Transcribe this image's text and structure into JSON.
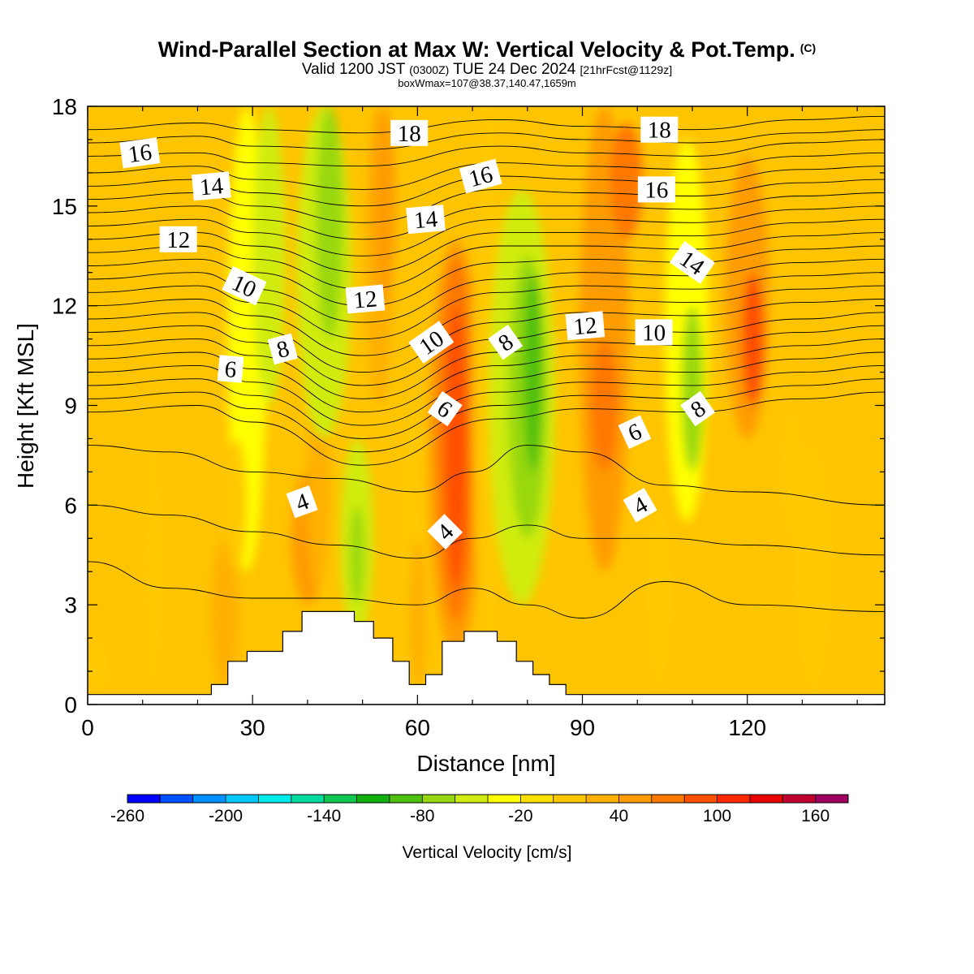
{
  "chart_data": {
    "type": "heatmap",
    "title": "Wind-Parallel Section at Max W: Vertical Velocity & Pot.Temp.",
    "title_mark": "(C)",
    "subtitle": {
      "prefix": "Valid 1200 JST",
      "utc": "(0300Z)",
      "date": "TUE 24 Dec 2024",
      "run": "[21hrFcst@1129z]"
    },
    "subsubtitle": "boxWmax=107@38.37,140.47,1659m",
    "xlabel": "Distance [nm]",
    "ylabel": "Height [Kft MSL]",
    "xlim": [
      0,
      145
    ],
    "ylim": [
      0,
      18
    ],
    "x_ticks": [
      0,
      30,
      60,
      90,
      120
    ],
    "y_ticks": [
      0,
      3,
      6,
      9,
      12,
      15,
      18
    ],
    "colorbar": {
      "label": "Vertical Velocity [cm/s]",
      "min": -260,
      "max": 180,
      "step": 20,
      "tick_labels": [
        -260,
        -200,
        -140,
        -80,
        -20,
        40,
        100,
        160
      ],
      "colors": [
        "#0000ff",
        "#0050ff",
        "#0090ff",
        "#00c8ff",
        "#00eaea",
        "#00dca0",
        "#10c850",
        "#10b010",
        "#50c010",
        "#98d810",
        "#d0ec10",
        "#ffff00",
        "#ffe000",
        "#ffc800",
        "#ffb000",
        "#ff9c00",
        "#ff7800",
        "#ff5000",
        "#ff2800",
        "#e80000",
        "#c00030",
        "#a00060"
      ]
    },
    "vertical_velocity_bands": [
      {
        "x": 12,
        "w": 4,
        "y0": 0.3,
        "y1": 8,
        "value": 10
      },
      {
        "x": 25,
        "w": 5,
        "y0": 0.5,
        "y1": 5,
        "value": 30
      },
      {
        "x": 29,
        "w": 7,
        "y0": 4,
        "y1": 18,
        "value": -30
      },
      {
        "x": 33,
        "w": 6,
        "y0": 9,
        "y1": 18,
        "value": -45
      },
      {
        "x": 40,
        "w": 6,
        "y0": 3,
        "y1": 7,
        "value": 50
      },
      {
        "x": 42,
        "w": 4,
        "y0": 3.5,
        "y1": 10,
        "value": 20
      },
      {
        "x": 43,
        "w": 10,
        "y0": 8,
        "y1": 18,
        "value": -50
      },
      {
        "x": 44,
        "w": 5,
        "y0": 11,
        "y1": 18,
        "value": -80
      },
      {
        "x": 49,
        "w": 6,
        "y0": 2,
        "y1": 8,
        "value": -45
      },
      {
        "x": 49,
        "w": 2.5,
        "y0": 3,
        "y1": 6,
        "value": -75
      },
      {
        "x": 53,
        "w": 5,
        "y0": 9,
        "y1": 18,
        "value": 20
      },
      {
        "x": 54,
        "w": 4,
        "y0": 12,
        "y1": 18,
        "value": 45
      },
      {
        "x": 59,
        "w": 5,
        "y0": 0.5,
        "y1": 9,
        "value": 10
      },
      {
        "x": 60,
        "w": 3,
        "y0": 0.5,
        "y1": 5,
        "value": 30
      },
      {
        "x": 67,
        "w": 10,
        "y0": 1.5,
        "y1": 14,
        "value": 40
      },
      {
        "x": 67,
        "w": 7,
        "y0": 2.5,
        "y1": 13.5,
        "value": 70
      },
      {
        "x": 67,
        "w": 4,
        "y0": 3.5,
        "y1": 12,
        "value": 95
      },
      {
        "x": 73,
        "w": 6,
        "y0": 1.5,
        "y1": 18,
        "value": 10
      },
      {
        "x": 79,
        "w": 12,
        "y0": 3,
        "y1": 15.5,
        "value": -45
      },
      {
        "x": 80,
        "w": 7,
        "y0": 5,
        "y1": 13.5,
        "value": -75
      },
      {
        "x": 81,
        "w": 3.5,
        "y0": 7,
        "y1": 13,
        "value": -95
      },
      {
        "x": 94,
        "w": 9,
        "y0": 4,
        "y1": 18,
        "value": 40
      },
      {
        "x": 94,
        "w": 5,
        "y0": 7,
        "y1": 11,
        "value": 70
      },
      {
        "x": 98,
        "w": 6,
        "y0": 14,
        "y1": 17.5,
        "value": 65
      },
      {
        "x": 109,
        "w": 8,
        "y0": 5.5,
        "y1": 17,
        "value": -35
      },
      {
        "x": 110,
        "w": 4,
        "y0": 7,
        "y1": 12,
        "value": -65
      },
      {
        "x": 104,
        "w": 6,
        "y0": 0.5,
        "y1": 6,
        "value": 10
      },
      {
        "x": 120,
        "w": 8,
        "y0": 8,
        "y1": 16.5,
        "value": 55
      },
      {
        "x": 121,
        "w": 4,
        "y0": 9,
        "y1": 13,
        "value": 80
      },
      {
        "x": 128,
        "w": 5,
        "y0": 5,
        "y1": 9,
        "value": 10
      },
      {
        "x": 132,
        "w": 8,
        "y0": 0.3,
        "y1": 8,
        "value": 10
      },
      {
        "x": 2,
        "w": 5,
        "y0": 0.3,
        "y1": 2,
        "value": 10
      },
      {
        "x": 27,
        "w": 4,
        "y0": 4,
        "y1": 8,
        "value": 10
      }
    ],
    "terrain_steps": [
      [
        0,
        0.3
      ],
      [
        22.5,
        0.3
      ],
      [
        22.5,
        0.6
      ],
      [
        25.5,
        0.6
      ],
      [
        25.5,
        1.3
      ],
      [
        29,
        1.3
      ],
      [
        29,
        1.6
      ],
      [
        35.5,
        1.6
      ],
      [
        35.5,
        2.2
      ],
      [
        39,
        2.2
      ],
      [
        39,
        2.8
      ],
      [
        48.5,
        2.8
      ],
      [
        48.5,
        2.5
      ],
      [
        52,
        2.5
      ],
      [
        52,
        2.0
      ],
      [
        55.5,
        2.0
      ],
      [
        55.5,
        1.3
      ],
      [
        58.5,
        1.3
      ],
      [
        58.5,
        0.6
      ],
      [
        61.5,
        0.6
      ],
      [
        61.5,
        0.9
      ],
      [
        64.5,
        0.9
      ],
      [
        64.5,
        1.9
      ],
      [
        68.5,
        1.9
      ],
      [
        68.5,
        2.2
      ],
      [
        74.5,
        2.2
      ],
      [
        74.5,
        1.9
      ],
      [
        78,
        1.9
      ],
      [
        78,
        1.3
      ],
      [
        81,
        1.3
      ],
      [
        81,
        0.9
      ],
      [
        84,
        0.9
      ],
      [
        84,
        0.6
      ],
      [
        87,
        0.6
      ],
      [
        87,
        0.3
      ],
      [
        145,
        0.3
      ]
    ],
    "theta_lines": [
      {
        "xs": [
          0,
          20,
          30,
          50,
          75,
          90,
          110,
          130,
          145
        ],
        "ys": [
          17.3,
          17.5,
          17.3,
          17.2,
          17.6,
          17.4,
          17.3,
          17.6,
          17.7
        ]
      },
      {
        "xs": [
          0,
          20,
          30,
          50,
          75,
          90,
          110,
          130,
          145
        ],
        "ys": [
          16.9,
          17.1,
          16.8,
          16.7,
          17.2,
          17.0,
          16.9,
          17.2,
          17.3
        ]
      },
      {
        "xs": [
          0,
          20,
          30,
          50,
          75,
          90,
          110,
          130,
          145
        ],
        "ys": [
          16.5,
          16.6,
          16.3,
          16.2,
          16.8,
          16.6,
          16.5,
          16.9,
          17.0
        ]
      },
      {
        "xs": [
          0,
          20,
          30,
          50,
          75,
          90,
          110,
          130,
          145
        ],
        "ys": [
          16.0,
          16.2,
          15.8,
          15.5,
          16.3,
          16.2,
          16.1,
          16.5,
          16.6
        ]
      },
      {
        "xs": [
          0,
          20,
          30,
          50,
          75,
          90,
          110,
          130,
          145
        ],
        "ys": [
          15.6,
          15.8,
          15.4,
          15.0,
          15.9,
          15.8,
          15.7,
          16.1,
          16.2
        ]
      },
      {
        "xs": [
          0,
          20,
          30,
          50,
          75,
          90,
          110,
          130,
          145
        ],
        "ys": [
          15.2,
          15.4,
          15.0,
          14.5,
          15.5,
          15.4,
          15.3,
          15.7,
          15.8
        ]
      },
      {
        "xs": [
          0,
          20,
          30,
          50,
          75,
          90,
          110,
          130,
          145
        ],
        "ys": [
          14.8,
          15.0,
          14.6,
          14.0,
          15.0,
          15.0,
          14.9,
          15.3,
          15.4
        ]
      },
      {
        "xs": [
          0,
          20,
          30,
          50,
          75,
          90,
          110,
          130,
          145
        ],
        "ys": [
          14.4,
          14.6,
          14.2,
          13.5,
          14.6,
          14.6,
          14.5,
          14.9,
          15.0
        ]
      },
      {
        "xs": [
          0,
          20,
          30,
          50,
          75,
          90,
          110,
          130,
          145
        ],
        "ys": [
          14.0,
          14.2,
          13.8,
          13.0,
          14.2,
          14.2,
          14.1,
          14.5,
          14.6
        ]
      },
      {
        "xs": [
          0,
          20,
          30,
          50,
          75,
          90,
          110,
          130,
          145
        ],
        "ys": [
          13.6,
          13.8,
          13.4,
          12.5,
          13.8,
          13.8,
          13.7,
          14.1,
          14.2
        ]
      },
      {
        "xs": [
          0,
          20,
          30,
          50,
          75,
          90,
          110,
          130,
          145
        ],
        "ys": [
          13.2,
          13.4,
          13.0,
          12.0,
          13.3,
          13.4,
          13.3,
          13.7,
          13.8
        ]
      },
      {
        "xs": [
          0,
          20,
          30,
          50,
          75,
          90,
          110,
          130,
          145
        ],
        "ys": [
          12.8,
          13.0,
          12.5,
          11.5,
          12.8,
          13.0,
          12.9,
          13.3,
          13.4
        ]
      },
      {
        "xs": [
          0,
          20,
          30,
          50,
          75,
          90,
          110,
          130,
          145
        ],
        "ys": [
          12.4,
          12.6,
          12.1,
          11.0,
          12.4,
          12.6,
          12.5,
          12.9,
          13.0
        ]
      },
      {
        "xs": [
          0,
          20,
          30,
          50,
          75,
          90,
          110,
          130,
          145
        ],
        "ys": [
          12.0,
          12.2,
          11.7,
          10.5,
          11.9,
          12.2,
          12.1,
          12.5,
          12.6
        ]
      },
      {
        "xs": [
          0,
          20,
          30,
          50,
          75,
          90,
          110,
          130,
          145
        ],
        "ys": [
          11.6,
          11.8,
          11.3,
          10.0,
          11.5,
          11.8,
          11.7,
          12.1,
          12.2
        ]
      },
      {
        "xs": [
          0,
          20,
          30,
          50,
          75,
          90,
          110,
          130,
          145
        ],
        "ys": [
          11.2,
          11.4,
          10.9,
          9.6,
          11.0,
          11.3,
          11.2,
          11.6,
          11.8
        ]
      },
      {
        "xs": [
          0,
          20,
          30,
          50,
          75,
          90,
          110,
          130,
          145
        ],
        "ys": [
          10.8,
          11.0,
          10.5,
          9.2,
          10.6,
          10.9,
          10.8,
          11.2,
          11.4
        ]
      },
      {
        "xs": [
          0,
          20,
          30,
          50,
          75,
          90,
          110,
          130,
          145
        ],
        "ys": [
          10.4,
          10.6,
          10.1,
          8.8,
          10.2,
          10.5,
          10.4,
          10.8,
          11.0
        ]
      },
      {
        "xs": [
          0,
          20,
          30,
          50,
          75,
          90,
          110,
          130,
          145
        ],
        "ys": [
          10.0,
          10.2,
          9.7,
          8.4,
          9.8,
          10.1,
          10.0,
          10.4,
          10.6
        ]
      },
      {
        "xs": [
          0,
          20,
          30,
          50,
          75,
          90,
          110,
          130,
          145
        ],
        "ys": [
          9.6,
          9.8,
          9.3,
          8.0,
          9.4,
          9.7,
          9.6,
          10.0,
          10.2
        ]
      },
      {
        "xs": [
          0,
          20,
          30,
          50,
          75,
          90,
          110,
          130,
          145
        ],
        "ys": [
          9.2,
          9.4,
          8.9,
          7.6,
          9.0,
          9.3,
          9.2,
          9.6,
          9.8
        ]
      },
      {
        "xs": [
          0,
          20,
          30,
          50,
          75,
          90,
          110,
          130,
          145
        ],
        "ys": [
          8.8,
          9.0,
          8.5,
          7.2,
          8.6,
          8.9,
          8.8,
          9.2,
          9.4
        ]
      },
      {
        "xs": [
          0,
          15,
          30,
          45,
          60,
          70,
          80,
          90,
          105,
          120,
          145
        ],
        "ys": [
          7.8,
          7.6,
          7.0,
          6.8,
          6.4,
          7.0,
          7.8,
          7.6,
          6.6,
          6.4,
          6.0
        ]
      },
      {
        "xs": [
          0,
          15,
          30,
          45,
          60,
          70,
          80,
          90,
          105,
          120,
          145
        ],
        "ys": [
          6.0,
          5.7,
          5.2,
          4.8,
          4.4,
          5.0,
          5.4,
          5.0,
          5.0,
          4.8,
          4.5
        ]
      },
      {
        "xs": [
          0,
          15,
          30,
          45,
          60,
          70,
          80,
          90,
          105,
          120,
          145
        ],
        "ys": [
          4.3,
          3.5,
          3.2,
          3.2,
          3.0,
          3.5,
          3.0,
          2.6,
          3.7,
          3.0,
          2.8
        ]
      }
    ],
    "contour_labels": [
      {
        "text": "16",
        "x": 9.5,
        "y": 16.6,
        "rot": -8
      },
      {
        "text": "14",
        "x": 22.5,
        "y": 15.6,
        "rot": -5
      },
      {
        "text": "12",
        "x": 16.5,
        "y": 14.0,
        "rot": 0
      },
      {
        "text": "10",
        "x": 28.5,
        "y": 12.6,
        "rot": 25
      },
      {
        "text": "8",
        "x": 35.5,
        "y": 10.7,
        "rot": -15
      },
      {
        "text": "6",
        "x": 26.0,
        "y": 10.1,
        "rot": 5
      },
      {
        "text": "4",
        "x": 39.0,
        "y": 6.1,
        "rot": -20
      },
      {
        "text": "18",
        "x": 58.5,
        "y": 17.2,
        "rot": 0
      },
      {
        "text": "16",
        "x": 71.5,
        "y": 15.9,
        "rot": -15
      },
      {
        "text": "14",
        "x": 61.5,
        "y": 14.6,
        "rot": -5
      },
      {
        "text": "12",
        "x": 50.5,
        "y": 12.2,
        "rot": -5
      },
      {
        "text": "10",
        "x": 62.5,
        "y": 10.9,
        "rot": -35
      },
      {
        "text": "8",
        "x": 76.0,
        "y": 10.9,
        "rot": -35
      },
      {
        "text": "6",
        "x": 65.0,
        "y": 8.9,
        "rot": 35
      },
      {
        "text": "4",
        "x": 65.0,
        "y": 5.2,
        "rot": -45
      },
      {
        "text": "18",
        "x": 104.0,
        "y": 17.3,
        "rot": 0
      },
      {
        "text": "16",
        "x": 103.5,
        "y": 15.5,
        "rot": 0
      },
      {
        "text": "14",
        "x": 110.0,
        "y": 13.3,
        "rot": 35
      },
      {
        "text": "12",
        "x": 90.5,
        "y": 11.4,
        "rot": -5
      },
      {
        "text": "10",
        "x": 103.0,
        "y": 11.2,
        "rot": 0
      },
      {
        "text": "8",
        "x": 111.0,
        "y": 8.9,
        "rot": -35
      },
      {
        "text": "6",
        "x": 99.5,
        "y": 8.2,
        "rot": -25
      },
      {
        "text": "4",
        "x": 100.5,
        "y": 6.0,
        "rot": -30
      }
    ]
  }
}
